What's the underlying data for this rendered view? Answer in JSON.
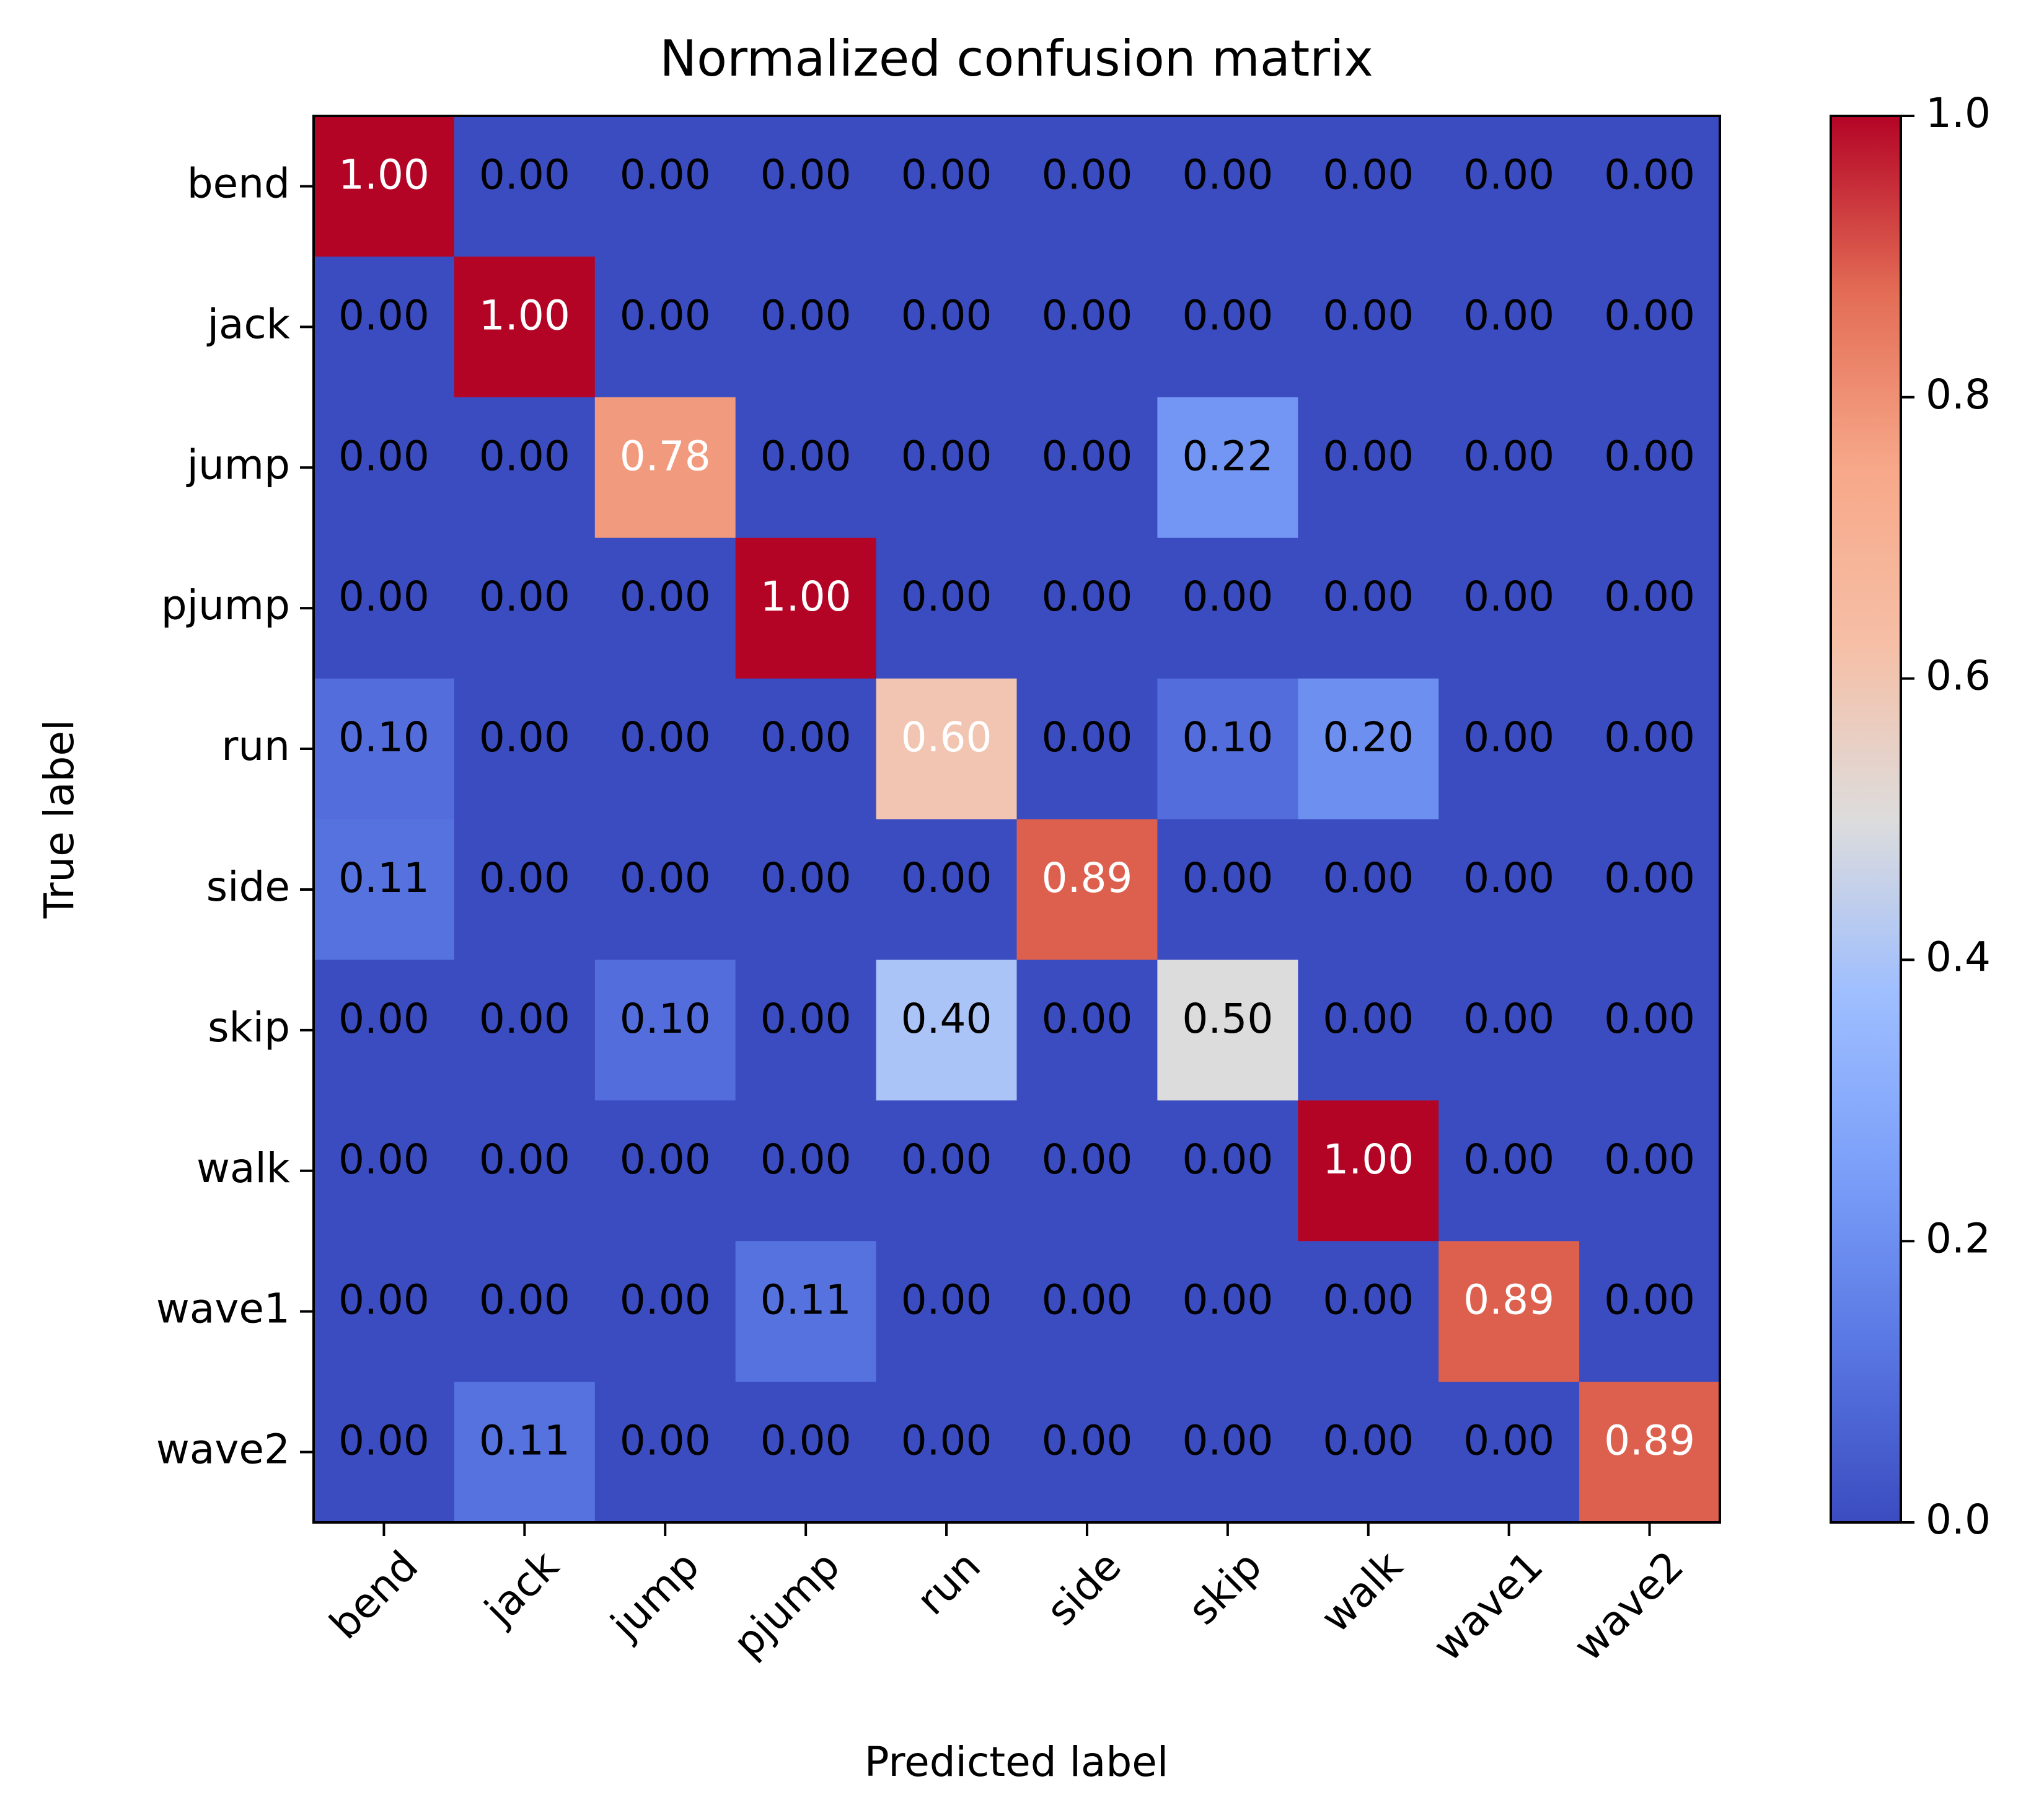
{
  "chart_data": {
    "type": "heatmap",
    "title": "Normalized confusion matrix",
    "xlabel": "Predicted label",
    "ylabel": "True label",
    "x_categories": [
      "bend",
      "jack",
      "jump",
      "pjump",
      "run",
      "side",
      "skip",
      "walk",
      "wave1",
      "wave2"
    ],
    "y_categories": [
      "bend",
      "jack",
      "jump",
      "pjump",
      "run",
      "side",
      "skip",
      "walk",
      "wave1",
      "wave2"
    ],
    "values": [
      [
        1.0,
        0.0,
        0.0,
        0.0,
        0.0,
        0.0,
        0.0,
        0.0,
        0.0,
        0.0
      ],
      [
        0.0,
        1.0,
        0.0,
        0.0,
        0.0,
        0.0,
        0.0,
        0.0,
        0.0,
        0.0
      ],
      [
        0.0,
        0.0,
        0.78,
        0.0,
        0.0,
        0.0,
        0.22,
        0.0,
        0.0,
        0.0
      ],
      [
        0.0,
        0.0,
        0.0,
        1.0,
        0.0,
        0.0,
        0.0,
        0.0,
        0.0,
        0.0
      ],
      [
        0.1,
        0.0,
        0.0,
        0.0,
        0.6,
        0.0,
        0.1,
        0.2,
        0.0,
        0.0
      ],
      [
        0.11,
        0.0,
        0.0,
        0.0,
        0.0,
        0.89,
        0.0,
        0.0,
        0.0,
        0.0
      ],
      [
        0.0,
        0.0,
        0.1,
        0.0,
        0.4,
        0.0,
        0.5,
        0.0,
        0.0,
        0.0
      ],
      [
        0.0,
        0.0,
        0.0,
        0.0,
        0.0,
        0.0,
        0.0,
        1.0,
        0.0,
        0.0
      ],
      [
        0.0,
        0.0,
        0.0,
        0.11,
        0.0,
        0.0,
        0.0,
        0.0,
        0.89,
        0.0
      ],
      [
        0.0,
        0.11,
        0.0,
        0.0,
        0.0,
        0.0,
        0.0,
        0.0,
        0.0,
        0.89
      ]
    ],
    "value_format": "2 decimals",
    "colormap": "coolwarm",
    "vmin": 0.0,
    "vmax": 1.0,
    "colorbar_ticks": [
      "0.0",
      "0.2",
      "0.4",
      "0.6",
      "0.8",
      "1.0"
    ],
    "grid": false,
    "text_color_dark": "#000000",
    "text_color_light": "#ffffff"
  }
}
